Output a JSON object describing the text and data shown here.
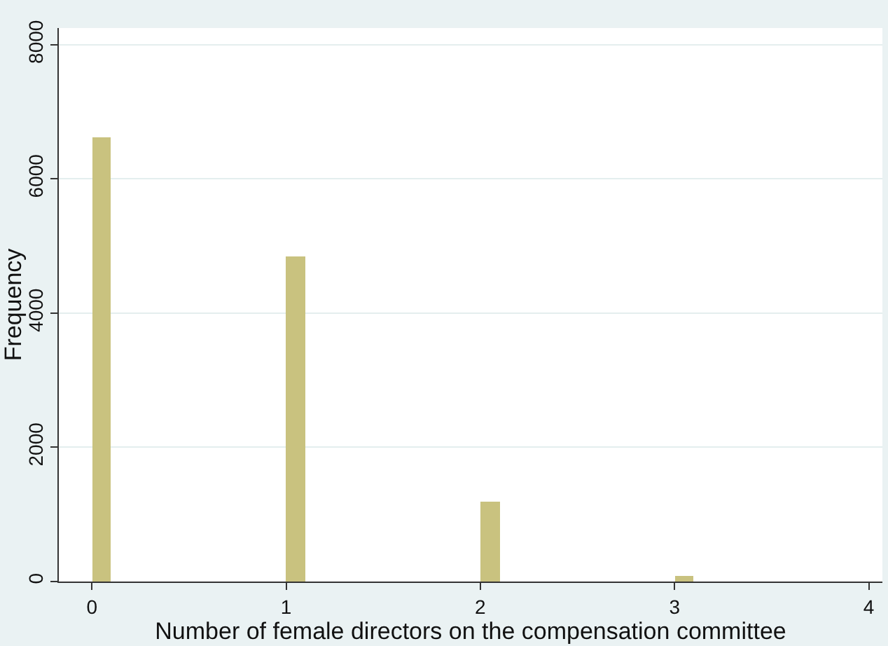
{
  "chart_data": {
    "type": "histogram",
    "xlabel": "Number of female directors on the compensation committee",
    "ylabel": "Frequency",
    "bins": [
      0,
      0.1,
      0.2,
      0.3,
      0.4,
      0.5,
      0.6,
      0.7,
      0.8,
      0.9,
      1,
      1.1,
      1.2,
      1.3,
      1.4,
      1.5,
      1.6,
      1.7,
      1.8,
      1.9,
      2,
      2.1,
      2.2,
      2.3,
      2.4,
      2.5,
      2.6,
      2.7,
      2.8,
      2.9,
      3,
      3.1
    ],
    "values": [
      6620,
      0,
      0,
      0,
      0,
      0,
      0,
      0,
      0,
      0,
      4850,
      0,
      0,
      0,
      0,
      0,
      0,
      0,
      0,
      0,
      1200,
      0,
      0,
      0,
      0,
      0,
      0,
      0,
      0,
      0,
      80
    ],
    "color": "#c9c27f",
    "xlim": [
      -0.17,
      4.07
    ],
    "xticks": [
      0,
      1,
      2,
      3,
      4
    ],
    "ylim": [
      0,
      8250
    ],
    "yticks": [
      0,
      2000,
      4000,
      6000,
      8000
    ],
    "grid": "y"
  }
}
